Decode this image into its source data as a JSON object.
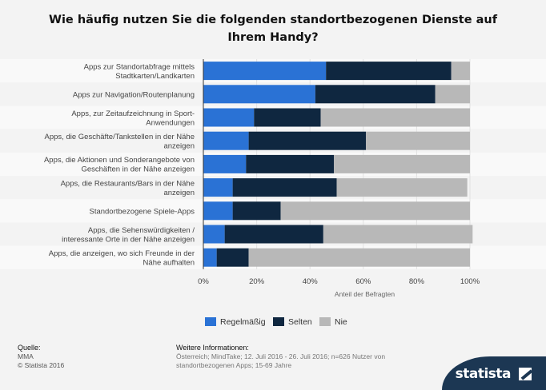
{
  "title": "Wie häufig nutzen Sie die folgenden standortbezogenen Dienste auf Ihrem Handy?",
  "chart_data": {
    "type": "bar",
    "orientation": "horizontal",
    "stacked": true,
    "categories": [
      [
        "Apps zur Standortabfrage mittels",
        "Stadtkarten/Landkarten"
      ],
      [
        "Apps zur Navigation/Routenplanung"
      ],
      [
        "Apps, zur Zeitaufzeichnung in Sport-",
        "Anwendungen"
      ],
      [
        "Apps, die Geschäfte/Tankstellen in der Nähe",
        "anzeigen"
      ],
      [
        "Apps, die Aktionen und Sonderangebote von",
        "Geschäften in der Nähe anzeigen"
      ],
      [
        "Apps, die Restaurants/Bars in der Nähe",
        "anzeigen"
      ],
      [
        "Standortbezogene Spiele-Apps"
      ],
      [
        "Apps, die Sehenswürdigkeiten /",
        "interessante Orte in der Nähe anzeigen"
      ],
      [
        "Apps, die anzeigen, wo sich Freunde in der",
        "Nähe aufhalten"
      ]
    ],
    "series": [
      {
        "name": "Regelmäßig",
        "color": "#2a72d5",
        "values": [
          46,
          42,
          19,
          17,
          16,
          11,
          11,
          8,
          5
        ]
      },
      {
        "name": "Selten",
        "color": "#0f2740",
        "values": [
          47,
          45,
          25,
          44,
          33,
          39,
          18,
          37,
          12
        ]
      },
      {
        "name": "Nie",
        "color": "#b8b8b8",
        "values": [
          7,
          13,
          56,
          39,
          51,
          49,
          71,
          56,
          83
        ]
      }
    ],
    "xlim": [
      0,
      100
    ],
    "xticks": [
      "0%",
      "20%",
      "40%",
      "60%",
      "80%",
      "100%"
    ],
    "xlabel": "Anteil der Befragten",
    "legend_position": "bottom"
  },
  "footer": {
    "source_heading": "Quelle:",
    "source_lines": [
      "MMA",
      "© Statista 2016"
    ],
    "info_heading": "Weitere Informationen:",
    "info_text": "Österreich; MindTake; 12. Juli 2016 - 26. Juli 2016; n=626 Nutzer von standortbezogenen Apps; 15-69 Jahre"
  },
  "brand": "statista"
}
